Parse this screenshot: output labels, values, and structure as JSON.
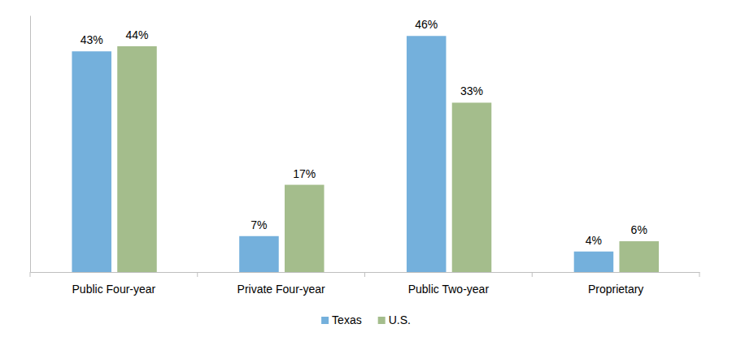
{
  "chart_data": {
    "type": "bar",
    "categories": [
      "Public Four-year",
      "Private Four-year",
      "Public Two-year",
      "Proprietary"
    ],
    "series": [
      {
        "name": "Texas",
        "color": "#74b0dc",
        "values": [
          43,
          7,
          46,
          4
        ],
        "value_labels": [
          "43%",
          "7%",
          "46%",
          "4%"
        ]
      },
      {
        "name": "U.S.",
        "color": "#a4bd8c",
        "values": [
          44,
          17,
          33,
          6
        ],
        "value_labels": [
          "44%",
          "17%",
          "33%",
          "6%"
        ]
      }
    ],
    "ylim": [
      0,
      50
    ],
    "data_labels": true,
    "tick_labels": "x",
    "legend": "bottom"
  }
}
